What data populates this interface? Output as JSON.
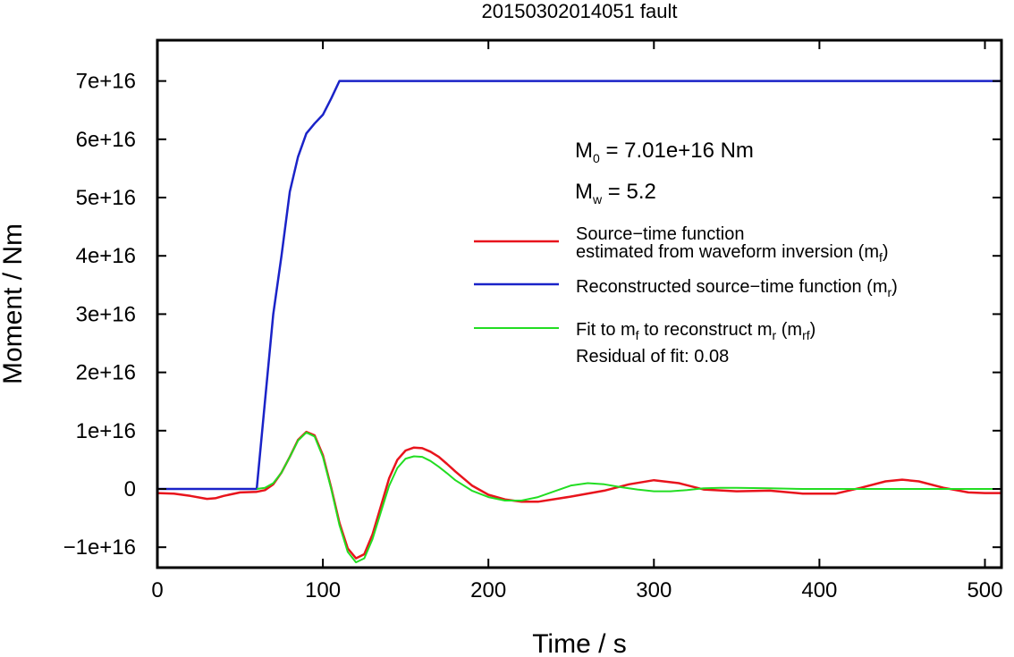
{
  "chart_data": {
    "type": "line",
    "title": "20150302014051 fault",
    "xlabel": "Time / s",
    "ylabel": "Moment / Nm",
    "xlim": [
      0,
      510
    ],
    "ylim": [
      -1.35e+16,
      7.7e+16
    ],
    "grid": false,
    "x_ticks": [
      {
        "value": 0,
        "label": "0"
      },
      {
        "value": 100,
        "label": "100"
      },
      {
        "value": 200,
        "label": "200"
      },
      {
        "value": 300,
        "label": "300"
      },
      {
        "value": 400,
        "label": "400"
      },
      {
        "value": 500,
        "label": "500"
      }
    ],
    "y_ticks": [
      {
        "value": -1e+16,
        "label": "−1e+16"
      },
      {
        "value": 0,
        "label": "0"
      },
      {
        "value": 1e+16,
        "label": "1e+16"
      },
      {
        "value": 2e+16,
        "label": "2e+16"
      },
      {
        "value": 3e+16,
        "label": "3e+16"
      },
      {
        "value": 4e+16,
        "label": "4e+16"
      },
      {
        "value": 5e+16,
        "label": "5e+16"
      },
      {
        "value": 6e+16,
        "label": "6e+16"
      },
      {
        "value": 7e+16,
        "label": "7e+16"
      }
    ],
    "annotations": {
      "m0_symbol": "M",
      "m0_sub": "0",
      "m0_text": " = 7.01e+16 Nm",
      "mw_symbol": "M",
      "mw_sub": "w",
      "mw_text": " = 5.2",
      "residual": "Residual of fit: 0.08"
    },
    "legend": [
      {
        "id": "red",
        "color": "#e8141c",
        "line1": "Source−time function",
        "line2": "estimated from waveform inversion (m",
        "sub": "f",
        "tail": ")"
      },
      {
        "id": "blue",
        "color": "#1a23c8",
        "line1": "Reconstructed source−time function (m",
        "sub": "r",
        "tail": ")"
      },
      {
        "id": "green",
        "color": "#22dd22",
        "line1": "Fit to m",
        "sub": "f",
        "mid": " to reconstruct m",
        "sub2": "r",
        "mid2": " (m",
        "sub3": "rf",
        "tail": ")"
      }
    ],
    "series": [
      {
        "name": "Source−time function estimated from waveform inversion (mf)",
        "color": "#e8141c",
        "x": [
          0,
          10,
          20,
          30,
          35,
          40,
          50,
          60,
          65,
          70,
          75,
          80,
          85,
          90,
          95,
          100,
          105,
          110,
          115,
          120,
          125,
          130,
          135,
          140,
          145,
          150,
          155,
          160,
          165,
          170,
          175,
          180,
          190,
          200,
          210,
          220,
          230,
          250,
          270,
          285,
          300,
          315,
          330,
          350,
          370,
          390,
          410,
          425,
          440,
          450,
          460,
          475,
          490,
          500,
          510
        ],
        "y": [
          -700000000000000.0,
          -800000000000000.0,
          -1200000000000000.0,
          -1700000000000000.0,
          -1600000000000000.0,
          -1200000000000000.0,
          -600000000000000.0,
          -500000000000000.0,
          -200000000000000.0,
          800000000000000.0,
          2800000000000000.0,
          5500000000000000.0,
          8400000000000000.0,
          9800000000000000.0,
          9200000000000000.0,
          5800000000000000.0,
          200000000000000.0,
          -5800000000000000.0,
          -1.02e+16,
          -1.19e+16,
          -1.12e+16,
          -7800000000000000.0,
          -3000000000000000.0,
          1800000000000000.0,
          5000000000000000.0,
          6600000000000000.0,
          7100000000000000.0,
          7000000000000000.0,
          6400000000000000.0,
          5500000000000000.0,
          4300000000000000.0,
          3000000000000000.0,
          600000000000000.0,
          -1000000000000000.0,
          -1800000000000000.0,
          -2200000000000000.0,
          -2200000000000000.0,
          -1300000000000000.0,
          -300000000000000.0,
          800000000000000.0,
          1500000000000000.0,
          1000000000000000.0,
          -100000000000000.0,
          -400000000000000.0,
          -300000000000000.0,
          -800000000000000.0,
          -800000000000000.0,
          200000000000000.0,
          1300000000000000.0,
          1600000000000000.0,
          1300000000000000.0,
          200000000000000.0,
          -600000000000000.0,
          -700000000000000.0,
          -700000000000000.0
        ]
      },
      {
        "name": "Reconstructed source−time function (mr)",
        "color": "#1a23c8",
        "x": [
          0,
          60,
          65,
          70,
          75,
          80,
          85,
          90,
          95,
          100,
          105,
          110,
          150,
          200,
          300,
          400,
          510
        ],
        "y": [
          0,
          0,
          1.5e+16,
          3e+16,
          4e+16,
          5.1e+16,
          5.7e+16,
          6.1e+16,
          6.27e+16,
          6.42e+16,
          6.7e+16,
          7e+16,
          7e+16,
          7e+16,
          7e+16,
          7e+16,
          7e+16
        ]
      },
      {
        "name": "Fit to mf to reconstruct mr (mrf)",
        "color": "#22dd22",
        "x": [
          60,
          65,
          70,
          75,
          80,
          85,
          90,
          95,
          100,
          105,
          110,
          115,
          120,
          125,
          130,
          135,
          140,
          145,
          150,
          155,
          160,
          165,
          170,
          175,
          180,
          190,
          200,
          210,
          220,
          230,
          240,
          250,
          260,
          270,
          280,
          290,
          300,
          310,
          320,
          330,
          340,
          350,
          370,
          390,
          410,
          430,
          450,
          470,
          490,
          510
        ],
        "y": [
          0,
          200000000000000.0,
          1000000000000000.0,
          2800000000000000.0,
          5500000000000000.0,
          8300000000000000.0,
          9700000000000000.0,
          9000000000000000.0,
          5500000000000000.0,
          0,
          -6200000000000000.0,
          -1.08e+16,
          -1.26e+16,
          -1.19e+16,
          -8600000000000000.0,
          -4000000000000000.0,
          500000000000000.0,
          3600000000000000.0,
          5200000000000000.0,
          5600000000000000.0,
          5500000000000000.0,
          4800000000000000.0,
          3800000000000000.0,
          2700000000000000.0,
          1500000000000000.0,
          -300000000000000.0,
          -1400000000000000.0,
          -2000000000000000.0,
          -2000000000000000.0,
          -1400000000000000.0,
          -400000000000000.0,
          600000000000000.0,
          1000000000000000.0,
          800000000000000.0,
          300000000000000.0,
          -100000000000000.0,
          -400000000000000.0,
          -400000000000000.0,
          -200000000000000.0,
          100000000000000.0,
          200000000000000.0,
          200000000000000.0,
          100000000000000.0,
          0,
          0,
          0,
          0,
          0,
          0,
          0
        ]
      }
    ]
  }
}
